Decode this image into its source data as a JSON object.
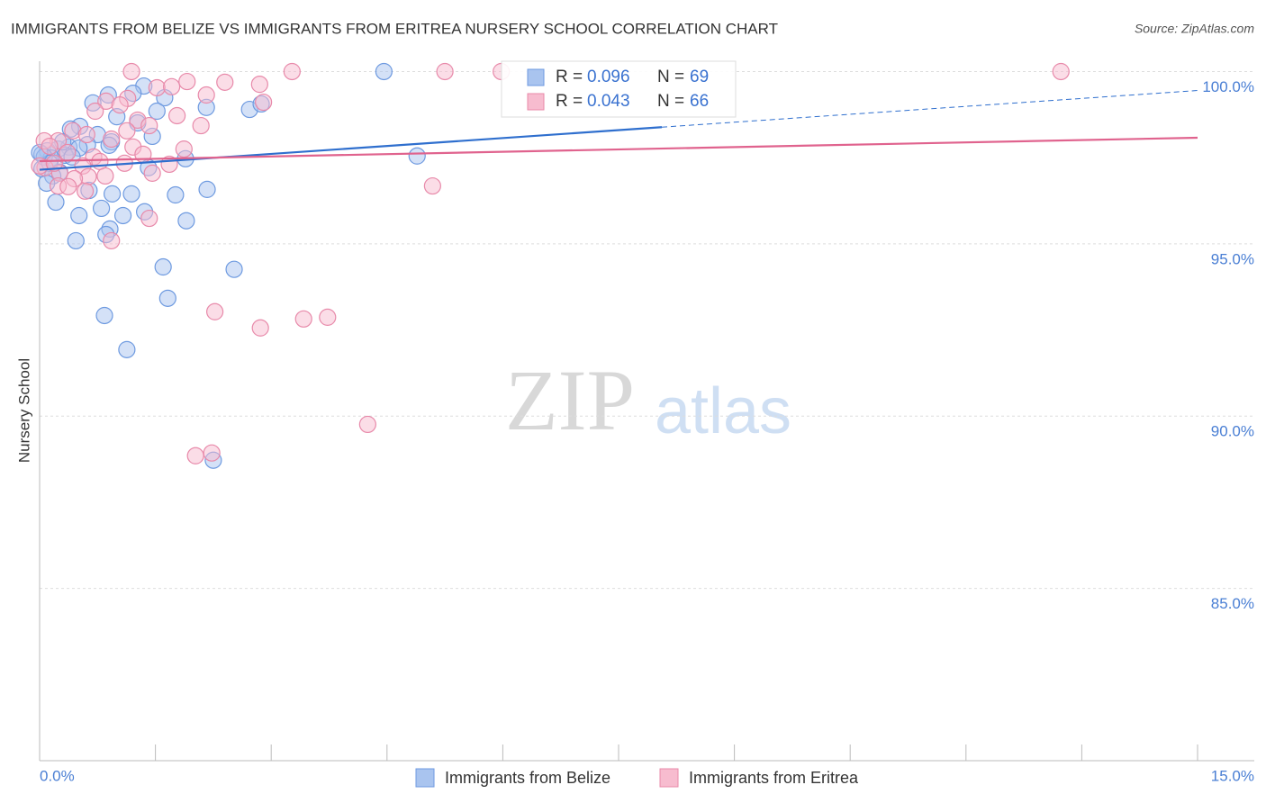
{
  "chart_data": {
    "type": "scatter",
    "title": "IMMIGRANTS FROM BELIZE VS IMMIGRANTS FROM ERITREA NURSERY SCHOOL CORRELATION CHART",
    "source": "Source: ZipAtlas.com",
    "watermark": {
      "bold": "ZIP",
      "light": "atlas"
    },
    "y_label": "Nursery School",
    "xlim": [
      0,
      15
    ],
    "ylim": [
      80,
      100.3
    ],
    "xticks": [
      {
        "value": 0,
        "label": "0.0%"
      },
      {
        "value": 15,
        "label": "15.0%"
      }
    ],
    "xminor_ticks": [
      1.5,
      3,
      4.5,
      6,
      7.5,
      9,
      10.5,
      12,
      13.5
    ],
    "yticks": [
      {
        "value": 85,
        "label": "85.0%"
      },
      {
        "value": 90,
        "label": "90.0%"
      },
      {
        "value": 95,
        "label": "95.0%"
      },
      {
        "value": 100,
        "label": "100.0%"
      }
    ],
    "grid": true,
    "stat_labels": {
      "r": "R =",
      "n": "N ="
    },
    "series": [
      {
        "name": "Immigrants from Belize",
        "color": "#a9c4ef",
        "stroke": "#6e9ae0",
        "line_color": "#2f6fce",
        "r": 0.096,
        "n": 69,
        "trend": {
          "x": [
            0,
            15
          ],
          "y": [
            97.15,
            99.45
          ],
          "dash_from": 8.06
        },
        "x": [
          4.46,
          1.35,
          1.21,
          0.89,
          1.62,
          0.69,
          2.16,
          2.72,
          2.87,
          1.52,
          1.0,
          1.27,
          0.52,
          0.4,
          1.46,
          0.75,
          0.93,
          0.9,
          0.62,
          0.38,
          0.51,
          0.24,
          0.1,
          0.03,
          0.33,
          0.15,
          1.89,
          4.89,
          0.03,
          0.26,
          0.17,
          1.41,
          0.09,
          0.64,
          0.94,
          1.19,
          2.17,
          1.76,
          0.21,
          0.8,
          1.36,
          0.51,
          1.08,
          1.9,
          0.91,
          0.86,
          0.47,
          1.6,
          2.52,
          1.66,
          0.84,
          1.13,
          2.25,
          0.06,
          0.13,
          0.3,
          0.42,
          0
        ],
        "values": [
          100,
          99.58,
          99.37,
          99.32,
          99.24,
          99.09,
          98.96,
          98.9,
          99.06,
          98.85,
          98.69,
          98.51,
          98.41,
          98.33,
          98.12,
          98.17,
          97.96,
          97.86,
          97.88,
          97.81,
          97.78,
          97.75,
          97.7,
          97.6,
          97.57,
          97.49,
          97.47,
          97.55,
          97.18,
          97.08,
          96.97,
          97.21,
          96.76,
          96.55,
          96.45,
          96.45,
          96.58,
          96.42,
          96.21,
          96.03,
          95.93,
          95.82,
          95.82,
          95.67,
          95.43,
          95.27,
          95.09,
          94.33,
          94.26,
          93.42,
          92.92,
          91.93,
          88.72,
          97.52,
          97.34,
          97.96,
          97.52,
          97.65
        ]
      },
      {
        "name": "Immigrants from Eritrea",
        "color": "#f7bccf",
        "stroke": "#e88aaa",
        "line_color": "#e0638e",
        "r": 0.043,
        "n": 66,
        "trend": {
          "x": [
            0,
            15
          ],
          "y": [
            97.4,
            98.08
          ],
          "dash_from": 15
        },
        "x": [
          1.19,
          3.27,
          5.25,
          5.98,
          13.23,
          1.91,
          2.4,
          2.85,
          1.52,
          1.71,
          2.16,
          1.14,
          0.86,
          1.04,
          0.72,
          1.78,
          2.9,
          1.27,
          2.09,
          1.42,
          1.13,
          0.93,
          0.43,
          0.61,
          0.24,
          0.06,
          0.13,
          1.21,
          1.87,
          1.34,
          0.36,
          0.7,
          0.78,
          1.1,
          1.68,
          0.56,
          0.07,
          0.26,
          1.46,
          0.63,
          0.85,
          0.45,
          0.24,
          0.37,
          0.59,
          5.09,
          1.42,
          0.93,
          2.27,
          2.86,
          3.42,
          3.73,
          4.25,
          2.02,
          2.23,
          0,
          0.19
        ],
        "values": [
          100,
          100,
          100,
          100,
          100,
          99.71,
          99.69,
          99.63,
          99.53,
          99.56,
          99.32,
          99.22,
          99.14,
          99.03,
          98.85,
          98.72,
          99.11,
          98.59,
          98.43,
          98.43,
          98.28,
          98.04,
          98.28,
          98.17,
          97.99,
          97.99,
          97.83,
          97.81,
          97.75,
          97.6,
          97.65,
          97.52,
          97.39,
          97.34,
          97.31,
          97.26,
          97.21,
          97.05,
          97.05,
          96.95,
          96.97,
          96.89,
          96.68,
          96.66,
          96.53,
          96.68,
          95.74,
          95.09,
          93.03,
          92.56,
          92.82,
          92.87,
          89.76,
          88.85,
          88.93,
          97.26,
          97.34
        ]
      }
    ]
  }
}
